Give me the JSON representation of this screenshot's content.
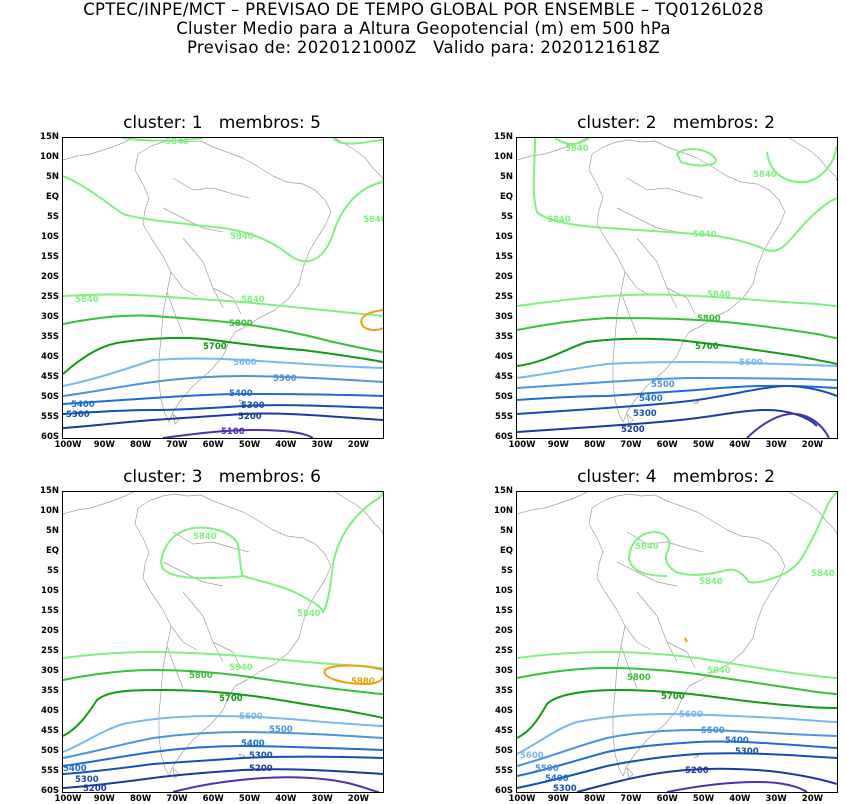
{
  "header": {
    "line1": "CPTEC/INPE/MCT – PREVISAO DE TEMPO GLOBAL POR ENSEMBLE – TQ0126L028",
    "line2": "Cluster Medio para a Altura Geopotencial (m) em 500 hPa",
    "line3": "Previsao de: 2020121000Z   Valido para: 2020121618Z"
  },
  "axes": {
    "lat_labels": [
      "15N",
      "10N",
      "5N",
      "EQ",
      "5S",
      "10S",
      "15S",
      "20S",
      "25S",
      "30S",
      "35S",
      "40S",
      "45S",
      "50S",
      "55S",
      "60S"
    ],
    "lon_labels": [
      "100W",
      "90W",
      "80W",
      "70W",
      "60W",
      "50W",
      "40W",
      "30W",
      "20W"
    ]
  },
  "colors": {
    "c5840": "#80f080",
    "c5880": "#f0a000",
    "c5800": "#38c038",
    "c5700": "#139a13",
    "c5600": "#78b8f0",
    "c5500": "#4b94e0",
    "c5400": "#1e6ed2",
    "c5300": "#1450b4",
    "c5200": "#1a3aa0",
    "c5100": "#5030b0",
    "map": "#a0a0a0"
  },
  "panels": [
    {
      "title": "cluster: 1   membros: 5",
      "labels": {
        "l5840a": "5840",
        "l5840b": "5840",
        "l5840c": "5840",
        "l5840d": "5840",
        "l5840e": "5840",
        "l5800": "5800",
        "l5700": "5700",
        "l5600": "5600",
        "l5500": "5500",
        "l5400a": "5400",
        "l5400b": "5400",
        "l5300a": "5300",
        "l5300b": "5300",
        "l5200": "5200",
        "l5100": "5100"
      }
    },
    {
      "title": "cluster: 2   membros: 2",
      "labels": {
        "l5840a": "5840",
        "l5840b": "5840",
        "l5840c": "5840",
        "l5840d": "5840",
        "l5840e": "5840",
        "l5800": "5800",
        "l5700": "5700",
        "l5600": "5600",
        "l5500": "5500",
        "l5400": "5400",
        "l5300": "5300",
        "l5200": "5200"
      }
    },
    {
      "title": "cluster: 3   membros: 6",
      "labels": {
        "l5840a": "5840",
        "l5840b": "5840",
        "l5840c": "5840",
        "l5880": "5880",
        "l5800": "5800",
        "l5700": "5700",
        "l5600": "5600",
        "l5500": "5500",
        "l5400a": "5400",
        "l5400b": "5400",
        "l5300a": "5300",
        "l5300b": "5300",
        "l5200a": "5200",
        "l5200b": "5200"
      }
    },
    {
      "title": "cluster: 4   membros: 2",
      "labels": {
        "l5840a": "5840",
        "l5840b": "5840",
        "l5840c": "5840",
        "l5840d": "5840",
        "l5800": "5800",
        "l5700": "5700",
        "l5600a": "5600",
        "l5600b": "5600",
        "l5500a": "5500",
        "l5500b": "5500",
        "l5400a": "5400",
        "l5400b": "5400",
        "l5300a": "5300",
        "l5300b": "5300",
        "l5200": "5200"
      }
    }
  ]
}
